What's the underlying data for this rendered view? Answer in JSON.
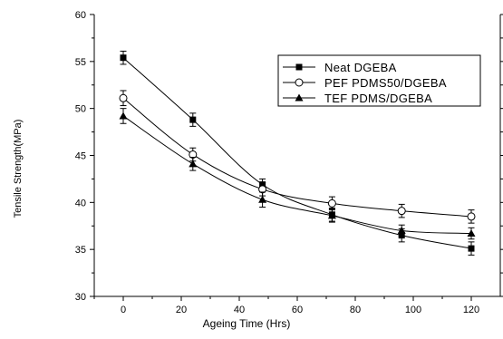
{
  "chart_data": {
    "type": "line",
    "title": "",
    "xlabel": "Ageing Time (Hrs)",
    "ylabel": "Tensile Strength(MPa)",
    "xlim": [
      -10,
      130
    ],
    "ylim": [
      30,
      60
    ],
    "x_ticks": [
      0,
      20,
      40,
      60,
      80,
      100,
      120
    ],
    "y_ticks": [
      30,
      35,
      40,
      45,
      50,
      55,
      60
    ],
    "grid": false,
    "legend_position": "top-right",
    "x": [
      0,
      24,
      48,
      72,
      96,
      120
    ],
    "series": [
      {
        "name": "Neat DGEBA",
        "marker": "filled-square",
        "values": [
          55.4,
          48.8,
          41.9,
          38.7,
          36.5,
          35.1
        ],
        "errors": [
          0.7,
          0.7,
          0.6,
          0.7,
          0.7,
          0.7
        ]
      },
      {
        "name": "PEF PDMS50/DGEBA",
        "marker": "open-circle",
        "values": [
          51.1,
          45.1,
          41.4,
          39.9,
          39.1,
          38.5
        ],
        "errors": [
          0.8,
          0.7,
          0.7,
          0.7,
          0.7,
          0.7
        ]
      },
      {
        "name": "TEF PDMS/DGEBA",
        "marker": "filled-triangle",
        "values": [
          49.2,
          44.1,
          40.3,
          38.6,
          37.0,
          36.7
        ],
        "errors": [
          0.8,
          0.7,
          0.8,
          0.7,
          0.6,
          0.6
        ]
      }
    ]
  }
}
